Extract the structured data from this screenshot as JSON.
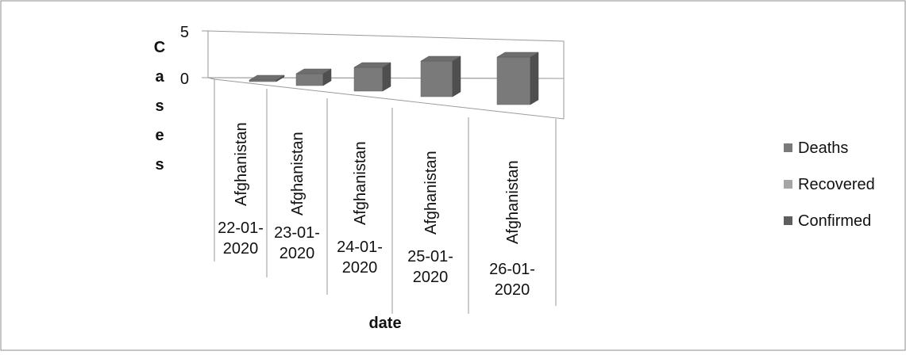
{
  "chart_data": {
    "type": "bar",
    "style": "3d-column",
    "categories": [
      {
        "country": "Afghanistan",
        "date_line1": "22-01-",
        "date_line2": "2020"
      },
      {
        "country": "Afghanistan",
        "date_line1": "23-01-",
        "date_line2": "2020"
      },
      {
        "country": "Afghanistan",
        "date_line1": "24-01-",
        "date_line2": "2020"
      },
      {
        "country": "Afghanistan",
        "date_line1": "25-01-",
        "date_line2": "2020"
      },
      {
        "country": "Afghanistan",
        "date_line1": "26-01-",
        "date_line2": "2020"
      }
    ],
    "series": [
      {
        "name": "Deaths",
        "values": [
          0,
          1,
          2,
          3,
          4
        ],
        "color": "#7a7a7a"
      },
      {
        "name": "Recovered",
        "values": [
          0,
          0,
          0,
          0,
          0
        ],
        "color": "#a6a6a6"
      },
      {
        "name": "Confirmed",
        "values": [
          0,
          0,
          0,
          0,
          0
        ],
        "color": "#5e5e5e"
      }
    ],
    "ylabel": "Cases",
    "xlabel": "date",
    "y_ticks": [
      "5",
      "0"
    ],
    "ylim": [
      0,
      5
    ],
    "legend_position": "right",
    "grid": false
  }
}
